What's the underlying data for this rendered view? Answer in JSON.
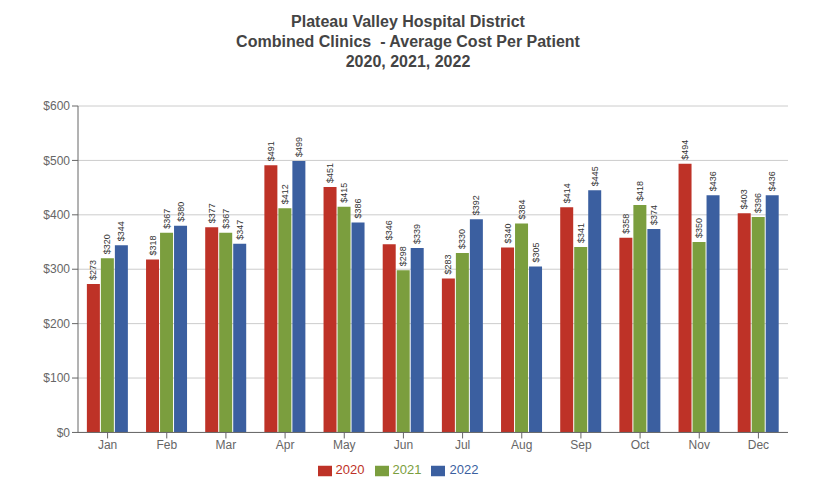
{
  "chart_data": {
    "type": "bar",
    "title": "Plateau Valley Hospital District\nCombined Clinics  - Average Cost Per Patient\n2020, 2021, 2022",
    "categories": [
      "Jan",
      "Feb",
      "Mar",
      "Apr",
      "May",
      "Jun",
      "Jul",
      "Aug",
      "Sep",
      "Oct",
      "Nov",
      "Dec"
    ],
    "series": [
      {
        "name": "2020",
        "color": "#BE3227",
        "values": [
          273,
          318,
          377,
          491,
          451,
          346,
          283,
          340,
          414,
          358,
          494,
          403
        ],
        "value_labels": [
          "$273",
          "$318",
          "$377",
          "$491",
          "$451",
          "$346",
          "$283",
          "$340",
          "$414",
          "$358",
          "$494",
          "$403"
        ]
      },
      {
        "name": "2021",
        "color": "#7B9E3E",
        "values": [
          320,
          367,
          367,
          412,
          415,
          298,
          330,
          384,
          341,
          418,
          350,
          396
        ],
        "value_labels": [
          "$320",
          "$367",
          "$367",
          "$412",
          "$415",
          "$298",
          "$330",
          "$384",
          "$341",
          "$418",
          "$350",
          "$396"
        ]
      },
      {
        "name": "2022",
        "color": "#3B5FA0",
        "values": [
          344,
          380,
          347,
          499,
          386,
          339,
          392,
          305,
          445,
          374,
          436,
          436
        ],
        "value_labels": [
          "$344",
          "$380",
          "$347",
          "$499",
          "$386",
          "$339",
          "$392",
          "$305",
          "$445",
          "$374",
          "$436",
          "$436"
        ]
      }
    ],
    "ylim": [
      0,
      600
    ],
    "yticks": [
      {
        "value": 0,
        "label": "$0"
      },
      {
        "value": 100,
        "label": "$100"
      },
      {
        "value": 200,
        "label": "$200"
      },
      {
        "value": 300,
        "label": "$300"
      },
      {
        "value": 400,
        "label": "$400"
      },
      {
        "value": 500,
        "label": "$500"
      },
      {
        "value": 600,
        "label": "$600"
      }
    ],
    "grid": true,
    "legend": "bottom",
    "data_labels": true
  }
}
